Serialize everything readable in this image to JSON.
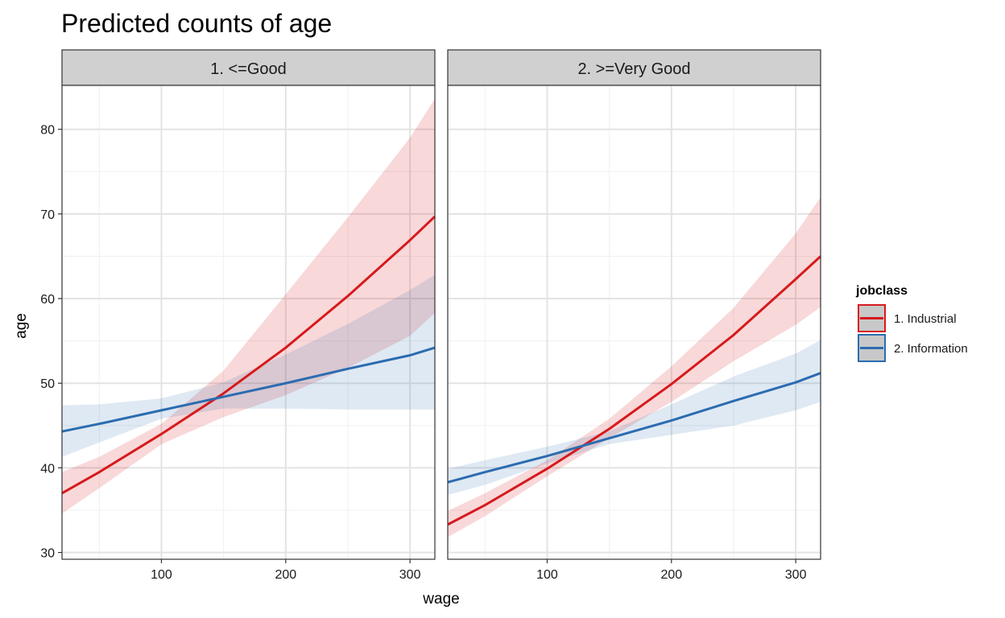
{
  "chart_data": {
    "type": "line",
    "title": "Predicted counts of age",
    "xlabel": "wage",
    "ylabel": "age",
    "x_ticks": [
      100,
      200,
      300
    ],
    "y_ticks": [
      30,
      40,
      50,
      60,
      70,
      80
    ],
    "xlim": [
      20,
      320
    ],
    "ylim": [
      29.2,
      85.2
    ],
    "grid": true,
    "legend": {
      "title": "jobclass",
      "position": "right",
      "entries": [
        {
          "label": "1. Industrial",
          "color": "#d7191c"
        },
        {
          "label": "2. Information",
          "color": "#2b6cb0"
        }
      ]
    },
    "panels": [
      {
        "label": "1. <=Good",
        "series": [
          {
            "name": "1. Industrial",
            "color": "#d7191c",
            "x": [
              20,
              50,
              100,
              150,
              200,
              250,
              300,
              320
            ],
            "y": [
              37.0,
              39.5,
              44.0,
              48.8,
              54.2,
              60.3,
              66.9,
              69.7
            ],
            "lower": [
              34.6,
              37.6,
              42.8,
              46.0,
              48.6,
              51.8,
              55.6,
              58.3
            ],
            "upper": [
              39.5,
              41.3,
              45.2,
              51.5,
              60.5,
              69.6,
              79.0,
              83.6
            ]
          },
          {
            "name": "2. Information",
            "color": "#2b6cb0",
            "x": [
              20,
              50,
              100,
              150,
              200,
              250,
              300,
              320
            ],
            "y": [
              44.3,
              45.2,
              46.8,
              48.4,
              50.0,
              51.7,
              53.3,
              54.2
            ],
            "lower": [
              41.3,
              43.0,
              45.8,
              47.0,
              47.0,
              46.9,
              46.9,
              46.9
            ],
            "upper": [
              47.4,
              47.5,
              48.2,
              50.1,
              53.4,
              57.0,
              61.0,
              62.8
            ]
          }
        ]
      },
      {
        "label": "2. >=Very Good",
        "series": [
          {
            "name": "1. Industrial",
            "color": "#d7191c",
            "x": [
              20,
              50,
              100,
              150,
              200,
              250,
              300,
              320
            ],
            "y": [
              33.3,
              35.6,
              39.9,
              44.6,
              49.9,
              55.7,
              62.3,
              65.0
            ],
            "lower": [
              31.8,
              34.3,
              39.0,
              43.5,
              47.8,
              52.6,
              56.9,
              59.0
            ],
            "upper": [
              34.9,
              37.0,
              40.9,
              45.8,
              52.0,
              58.9,
              67.7,
              72.0
            ]
          },
          {
            "name": "2. Information",
            "color": "#2b6cb0",
            "x": [
              20,
              50,
              100,
              150,
              200,
              250,
              300,
              320
            ],
            "y": [
              38.3,
              39.5,
              41.4,
              43.5,
              45.6,
              47.9,
              50.1,
              51.2
            ],
            "lower": [
              36.8,
              38.0,
              40.5,
              42.8,
              43.9,
              45.0,
              46.8,
              47.8
            ],
            "upper": [
              39.9,
              40.9,
              42.5,
              44.3,
              47.5,
              50.8,
              53.5,
              55.1
            ]
          }
        ]
      }
    ]
  }
}
